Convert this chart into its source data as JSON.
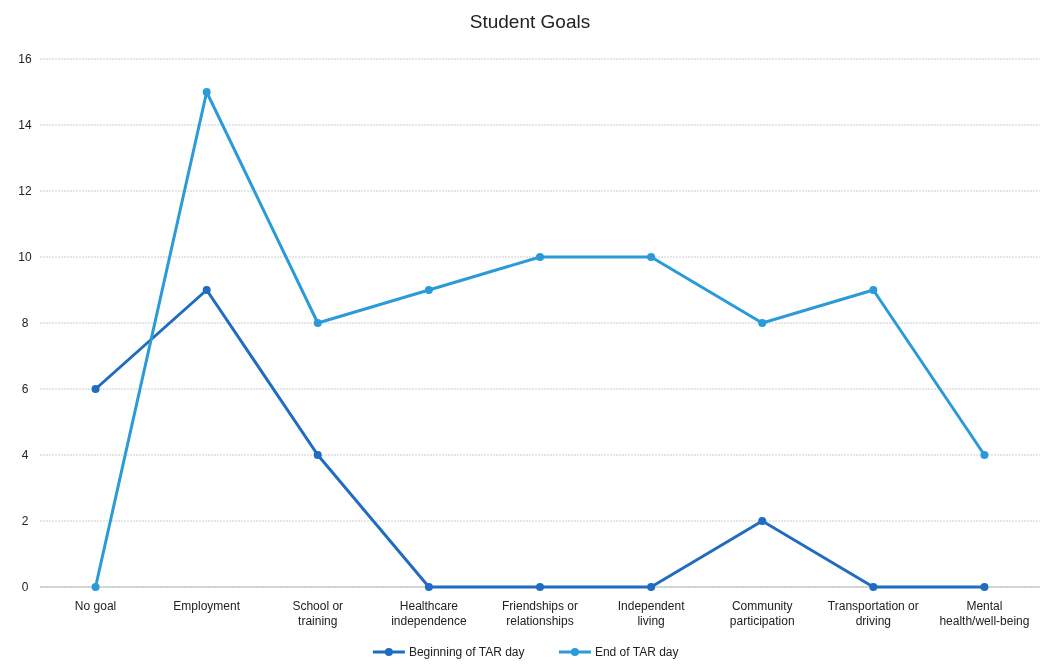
{
  "chart_data": {
    "type": "line",
    "title": "Student Goals",
    "categories": [
      "No goal",
      "Employment",
      "School or training",
      "Healthcare independence",
      "Friendships or relationships",
      "Independent living",
      "Community participation",
      "Transportation or driving",
      "Mental health/well-being"
    ],
    "series": [
      {
        "name": "Beginning of TAR day",
        "color": "#1f6cc0",
        "values": [
          6,
          9,
          4,
          0,
          0,
          0,
          2,
          0,
          0
        ]
      },
      {
        "name": "End of TAR day",
        "color": "#2b9ad8",
        "values": [
          0,
          15,
          8,
          9,
          10,
          10,
          8,
          9,
          4
        ]
      }
    ],
    "ylim": [
      0,
      16
    ],
    "yticks": [
      0,
      2,
      4,
      6,
      8,
      10,
      12,
      14,
      16
    ],
    "grid": "y",
    "legend": "bottom",
    "marker": "circle",
    "line_style": "solid"
  }
}
